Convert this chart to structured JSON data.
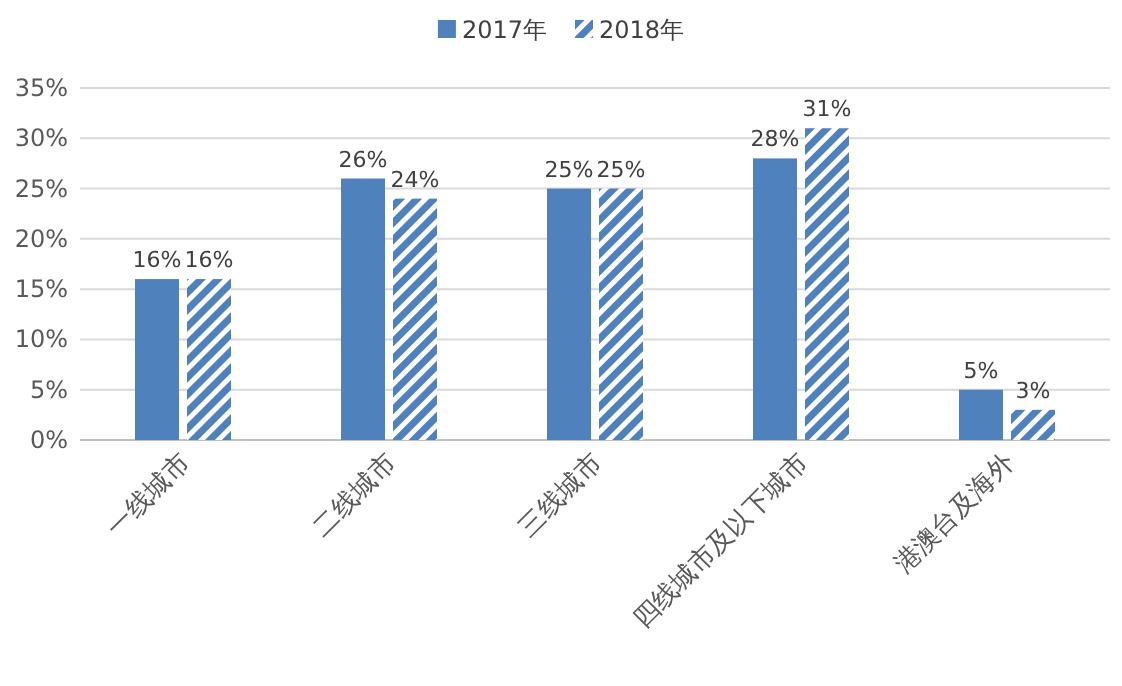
{
  "chart_data": {
    "type": "bar",
    "categories": [
      "一线城市",
      "二线城市",
      "三线城市",
      "四线城市及以下城市",
      "港澳台及海外"
    ],
    "series": [
      {
        "name": "2017年",
        "color": "#4f81bd",
        "values": [
          16,
          26,
          25,
          28,
          5
        ],
        "value_labels": [
          "16%",
          "26%",
          "25%",
          "28%",
          "5%"
        ]
      },
      {
        "name": "2018年",
        "color": "#4f81bd",
        "values": [
          16,
          24,
          25,
          31,
          3
        ],
        "value_labels": [
          "16%",
          "24%",
          "25%",
          "31%",
          "3%"
        ]
      }
    ],
    "ylim": [
      0,
      35
    ],
    "yticks": [
      {
        "value": 0,
        "label": "0%"
      },
      {
        "value": 5,
        "label": "5%"
      },
      {
        "value": 10,
        "label": "10%"
      },
      {
        "value": 15,
        "label": "15%"
      },
      {
        "value": 20,
        "label": "20%"
      },
      {
        "value": 25,
        "label": "25%"
      },
      {
        "value": 30,
        "label": "30%"
      },
      {
        "value": 35,
        "label": "35%"
      }
    ],
    "grid": "y",
    "legend": "top"
  }
}
